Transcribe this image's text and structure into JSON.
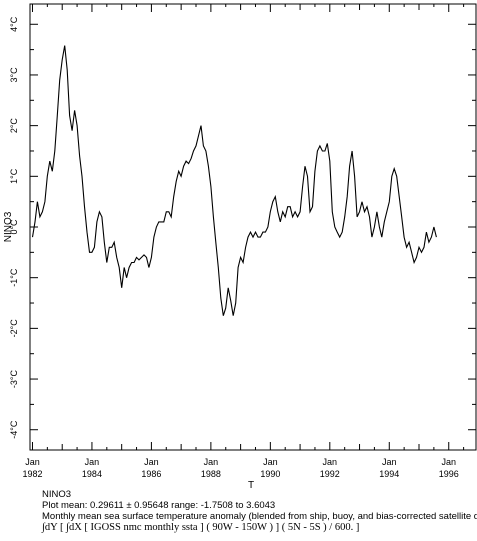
{
  "chart_data": {
    "type": "line",
    "title": "",
    "xlabel": "T",
    "ylabel": "NINO3",
    "x_unit": "months since Jan 1982",
    "xlim": [
      -1,
      179
    ],
    "ylim": [
      -4.4,
      4.4
    ],
    "grid": false,
    "legend": "none",
    "y_ticks": [
      {
        "value": 4,
        "label": "4°C"
      },
      {
        "value": 3,
        "label": "3°C"
      },
      {
        "value": 2,
        "label": "2°C"
      },
      {
        "value": 1,
        "label": "1°C"
      },
      {
        "value": 0,
        "label": "0°C"
      },
      {
        "value": -1,
        "label": "-1°C"
      },
      {
        "value": -2,
        "label": "-2°C"
      },
      {
        "value": -3,
        "label": "-3°C"
      },
      {
        "value": -4,
        "label": "-4°C"
      }
    ],
    "x_ticks": [
      {
        "value": 0,
        "label_top": "Jan",
        "label_bottom": "1982"
      },
      {
        "value": 24,
        "label_top": "Jan",
        "label_bottom": "1984"
      },
      {
        "value": 48,
        "label_top": "Jan",
        "label_bottom": "1986"
      },
      {
        "value": 72,
        "label_top": "Jan",
        "label_bottom": "1988"
      },
      {
        "value": 96,
        "label_top": "Jan",
        "label_bottom": "1990"
      },
      {
        "value": 120,
        "label_top": "Jan",
        "label_bottom": "1992"
      },
      {
        "value": 144,
        "label_top": "Jan",
        "label_bottom": "1994"
      },
      {
        "value": 168,
        "label_top": "Jan",
        "label_bottom": "1996"
      }
    ],
    "series": [
      {
        "color": "#000000",
        "points": [
          [
            0,
            -0.2
          ],
          [
            1,
            0.1
          ],
          [
            2,
            0.5
          ],
          [
            3,
            0.2
          ],
          [
            4,
            0.3
          ],
          [
            5,
            0.5
          ],
          [
            6,
            1.0
          ],
          [
            7,
            1.3
          ],
          [
            8,
            1.1
          ],
          [
            9,
            1.5
          ],
          [
            10,
            2.2
          ],
          [
            11,
            2.9
          ],
          [
            12,
            3.3
          ],
          [
            13,
            3.58
          ],
          [
            14,
            3.1
          ],
          [
            15,
            2.2
          ],
          [
            16,
            1.9
          ],
          [
            17,
            2.3
          ],
          [
            18,
            2.0
          ],
          [
            19,
            1.4
          ],
          [
            20,
            1.0
          ],
          [
            21,
            0.4
          ],
          [
            22,
            -0.1
          ],
          [
            23,
            -0.5
          ],
          [
            24,
            -0.5
          ],
          [
            25,
            -0.4
          ],
          [
            26,
            0.1
          ],
          [
            27,
            0.3
          ],
          [
            28,
            0.2
          ],
          [
            29,
            -0.3
          ],
          [
            30,
            -0.7
          ],
          [
            31,
            -0.4
          ],
          [
            32,
            -0.4
          ],
          [
            33,
            -0.3
          ],
          [
            34,
            -0.6
          ],
          [
            35,
            -0.8
          ],
          [
            36,
            -1.2
          ],
          [
            37,
            -0.8
          ],
          [
            38,
            -1.0
          ],
          [
            39,
            -0.8
          ],
          [
            40,
            -0.7
          ],
          [
            41,
            -0.7
          ],
          [
            42,
            -0.6
          ],
          [
            43,
            -0.65
          ],
          [
            44,
            -0.6
          ],
          [
            45,
            -0.55
          ],
          [
            46,
            -0.6
          ],
          [
            47,
            -0.8
          ],
          [
            48,
            -0.6
          ],
          [
            49,
            -0.2
          ],
          [
            50,
            0.0
          ],
          [
            51,
            0.1
          ],
          [
            52,
            0.1
          ],
          [
            53,
            0.1
          ],
          [
            54,
            0.3
          ],
          [
            55,
            0.3
          ],
          [
            56,
            0.2
          ],
          [
            57,
            0.6
          ],
          [
            58,
            0.9
          ],
          [
            59,
            1.1
          ],
          [
            60,
            1.0
          ],
          [
            61,
            1.2
          ],
          [
            62,
            1.3
          ],
          [
            63,
            1.25
          ],
          [
            64,
            1.35
          ],
          [
            65,
            1.5
          ],
          [
            66,
            1.6
          ],
          [
            67,
            1.8
          ],
          [
            68,
            2.0
          ],
          [
            69,
            1.6
          ],
          [
            70,
            1.5
          ],
          [
            71,
            1.2
          ],
          [
            72,
            0.8
          ],
          [
            73,
            0.2
          ],
          [
            74,
            -0.3
          ],
          [
            75,
            -0.8
          ],
          [
            76,
            -1.4
          ],
          [
            77,
            -1.75
          ],
          [
            78,
            -1.6
          ],
          [
            79,
            -1.2
          ],
          [
            80,
            -1.45
          ],
          [
            81,
            -1.75
          ],
          [
            82,
            -1.5
          ],
          [
            83,
            -0.8
          ],
          [
            84,
            -0.6
          ],
          [
            85,
            -0.7
          ],
          [
            86,
            -0.4
          ],
          [
            87,
            -0.2
          ],
          [
            88,
            -0.1
          ],
          [
            89,
            -0.2
          ],
          [
            90,
            -0.1
          ],
          [
            91,
            -0.2
          ],
          [
            92,
            -0.2
          ],
          [
            93,
            -0.1
          ],
          [
            94,
            -0.1
          ],
          [
            95,
            0.0
          ],
          [
            96,
            0.3
          ],
          [
            97,
            0.5
          ],
          [
            98,
            0.6
          ],
          [
            99,
            0.3
          ],
          [
            100,
            0.1
          ],
          [
            101,
            0.3
          ],
          [
            102,
            0.2
          ],
          [
            103,
            0.4
          ],
          [
            104,
            0.4
          ],
          [
            105,
            0.2
          ],
          [
            106,
            0.3
          ],
          [
            107,
            0.2
          ],
          [
            108,
            0.3
          ],
          [
            109,
            0.8
          ],
          [
            110,
            1.2
          ],
          [
            111,
            1.0
          ],
          [
            112,
            0.3
          ],
          [
            113,
            0.4
          ],
          [
            114,
            1.1
          ],
          [
            115,
            1.5
          ],
          [
            116,
            1.6
          ],
          [
            117,
            1.5
          ],
          [
            118,
            1.5
          ],
          [
            119,
            1.65
          ],
          [
            120,
            1.3
          ],
          [
            121,
            0.3
          ],
          [
            122,
            0.0
          ],
          [
            123,
            -0.1
          ],
          [
            124,
            -0.2
          ],
          [
            125,
            -0.1
          ],
          [
            126,
            0.2
          ],
          [
            127,
            0.6
          ],
          [
            128,
            1.2
          ],
          [
            129,
            1.5
          ],
          [
            130,
            1.0
          ],
          [
            131,
            0.2
          ],
          [
            132,
            0.3
          ],
          [
            133,
            0.5
          ],
          [
            134,
            0.3
          ],
          [
            135,
            0.4
          ],
          [
            136,
            0.2
          ],
          [
            137,
            -0.2
          ],
          [
            138,
            0.0
          ],
          [
            139,
            0.3
          ],
          [
            140,
            0.0
          ],
          [
            141,
            -0.2
          ],
          [
            142,
            0.1
          ],
          [
            143,
            0.3
          ],
          [
            144,
            0.5
          ],
          [
            145,
            1.0
          ],
          [
            146,
            1.15
          ],
          [
            147,
            1.0
          ],
          [
            148,
            0.6
          ],
          [
            149,
            0.2
          ],
          [
            150,
            -0.2
          ],
          [
            151,
            -0.4
          ],
          [
            152,
            -0.3
          ],
          [
            153,
            -0.5
          ],
          [
            154,
            -0.7
          ],
          [
            155,
            -0.6
          ],
          [
            156,
            -0.4
          ],
          [
            157,
            -0.5
          ],
          [
            158,
            -0.4
          ],
          [
            159,
            -0.1
          ],
          [
            160,
            -0.3
          ],
          [
            161,
            -0.2
          ],
          [
            162,
            0.0
          ],
          [
            163,
            -0.2
          ]
        ]
      }
    ]
  },
  "caption": {
    "line1": "NINO3",
    "line2": "Plot mean: 0.29611 ± 0.95648   range: -1.7508 to 3.6043",
    "line3": "Monthly mean sea surface temperature anomaly (blended from ship, buoy, and bias-corrected satellite data)",
    "line4": "∫dY [ ∫dX [ IGOSS nmc monthly ssta ] ( 90W - 150W ) ] ( 5N - 5S ) / 600. ]"
  }
}
